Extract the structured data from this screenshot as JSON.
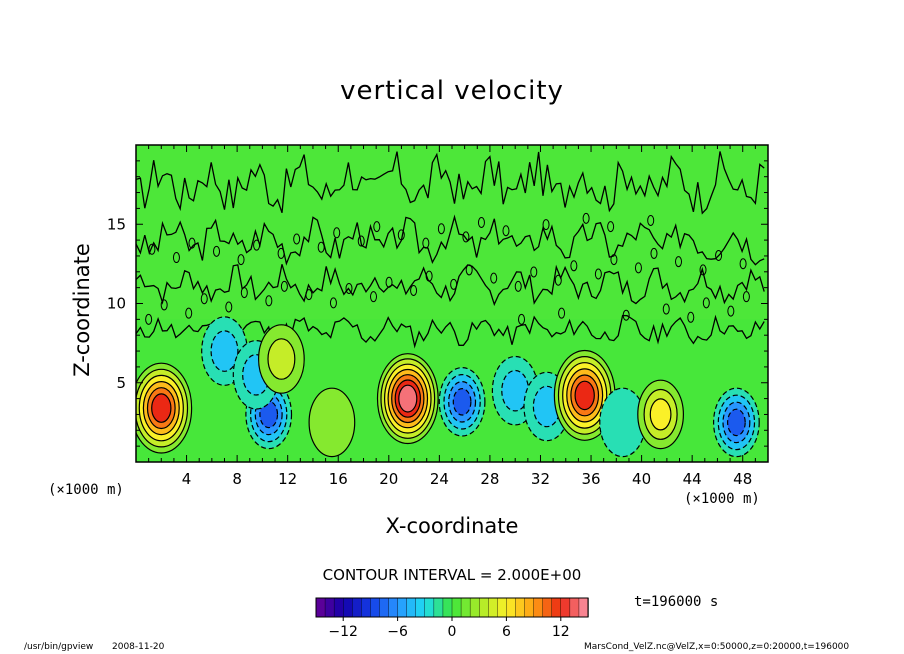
{
  "chart_data": {
    "type": "heatmap",
    "title": "vertical velocity",
    "xlabel": "X-coordinate",
    "ylabel": "Z-coordinate",
    "x_unit": "(×1000 m)",
    "x_range": [
      0,
      50
    ],
    "y_range": [
      0,
      20
    ],
    "x_ticks": [
      4,
      8,
      12,
      16,
      20,
      24,
      28,
      32,
      36,
      40,
      44,
      48
    ],
    "y_ticks": [
      5,
      10,
      15
    ],
    "contour_interval": "CONTOUR INTERVAL = 2.000E+00",
    "colorbar": {
      "range": [
        -15,
        15
      ],
      "ticks": [
        -12,
        -6,
        0,
        6,
        12
      ],
      "tick_labels": [
        "−12",
        "−6",
        "0",
        "6",
        "12"
      ]
    },
    "features": [
      {
        "x": 2.0,
        "z": 3.4,
        "value": 12
      },
      {
        "x": 10.5,
        "z": 3.0,
        "value": -8
      },
      {
        "x": 7.0,
        "z": 7.0,
        "value": -4
      },
      {
        "x": 9.5,
        "z": 5.5,
        "value": -4
      },
      {
        "x": 11.5,
        "z": 6.5,
        "value": 4
      },
      {
        "x": 15.5,
        "z": 2.5,
        "value": 3
      },
      {
        "x": 21.5,
        "z": 4.0,
        "value": 14
      },
      {
        "x": 25.8,
        "z": 3.8,
        "value": -8
      },
      {
        "x": 30.0,
        "z": 4.5,
        "value": -4
      },
      {
        "x": 32.5,
        "z": 3.5,
        "value": -5
      },
      {
        "x": 35.5,
        "z": 4.2,
        "value": 13
      },
      {
        "x": 38.5,
        "z": 2.5,
        "value": -3
      },
      {
        "x": 41.5,
        "z": 3.0,
        "value": 6
      },
      {
        "x": 47.5,
        "z": 2.5,
        "value": -8
      }
    ]
  },
  "labels": {
    "time": "t=196000 s",
    "program": "/usr/bin/gpview",
    "date": "2008-11-20",
    "source": "MarsCond_VelZ.nc@VelZ,x=0:50000,z=0:20000,t=196000"
  }
}
